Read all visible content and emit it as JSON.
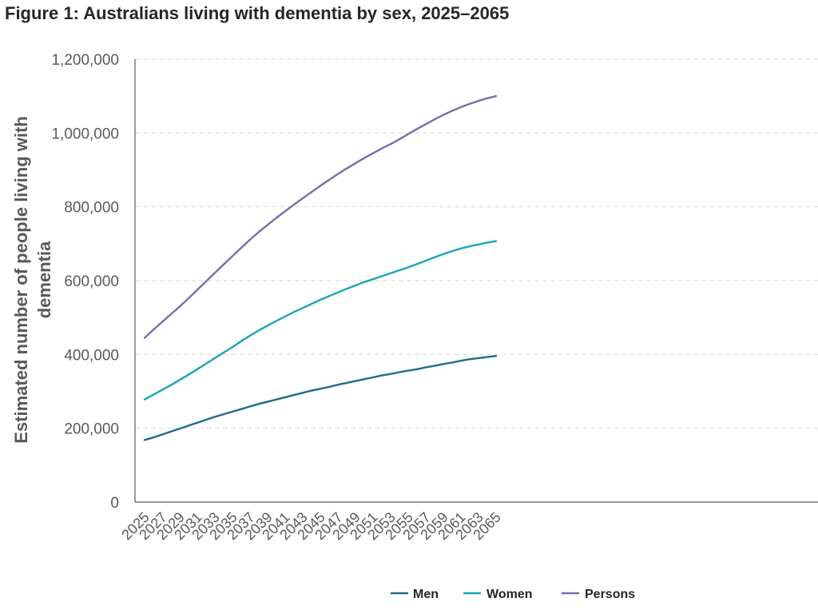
{
  "chart_data": {
    "type": "line",
    "title": "Figure 1: Australians living with dementia by sex, 2025–2065",
    "xlabel": "",
    "ylabel_lines": [
      "Estimated number of people living with",
      "dementia"
    ],
    "x": [
      2025,
      2026,
      2027,
      2028,
      2029,
      2030,
      2031,
      2032,
      2033,
      2034,
      2035,
      2036,
      2037,
      2038,
      2039,
      2040,
      2041,
      2042,
      2043,
      2044,
      2045,
      2046,
      2047,
      2048,
      2049,
      2050,
      2051,
      2052,
      2053,
      2054,
      2055,
      2056,
      2057,
      2058,
      2059,
      2060,
      2061,
      2062,
      2063,
      2064,
      2065
    ],
    "x_tick_labels": [
      "2025",
      "2027",
      "2029",
      "2031",
      "2033",
      "2035",
      "2037",
      "2039",
      "2041",
      "2043",
      "2045",
      "2047",
      "2049",
      "2051",
      "2053",
      "2055",
      "2057",
      "2059",
      "2061",
      "2063",
      "2065"
    ],
    "y_tick_labels": [
      "0",
      "200,000",
      "400,000",
      "600,000",
      "800,000",
      "1,000,000",
      "1,200,000"
    ],
    "ylim": [
      0,
      1200000
    ],
    "grid": "horizontal dashed",
    "legend_position": "bottom",
    "series": [
      {
        "name": "Men",
        "color": "#1f6b85",
        "values": [
          168000,
          175000,
          183000,
          191000,
          199000,
          207000,
          215000,
          223000,
          231000,
          238000,
          245000,
          252000,
          259000,
          266000,
          272000,
          278000,
          284000,
          290000,
          296000,
          302000,
          307000,
          312000,
          318000,
          323000,
          328000,
          333000,
          338000,
          343000,
          347000,
          352000,
          356000,
          360000,
          365000,
          369000,
          374000,
          378000,
          383000,
          387000,
          390000,
          393000,
          396000
        ]
      },
      {
        "name": "Women",
        "color": "#1aa6b7",
        "values": [
          278000,
          291000,
          304000,
          317000,
          331000,
          345000,
          360000,
          375000,
          390000,
          405000,
          420000,
          436000,
          451000,
          465000,
          478000,
          491000,
          503000,
          515000,
          526000,
          537000,
          548000,
          558000,
          568000,
          578000,
          587000,
          596000,
          604000,
          612000,
          620000,
          628000,
          636000,
          645000,
          654000,
          663000,
          672000,
          680000,
          687000,
          693000,
          698000,
          703000,
          707000
        ]
      },
      {
        "name": "Persons",
        "color": "#7b6cab",
        "values": [
          445000,
          467000,
          488000,
          509000,
          530000,
          552000,
          575000,
          598000,
          621000,
          644000,
          666000,
          689000,
          711000,
          732000,
          751000,
          770000,
          788000,
          806000,
          823000,
          840000,
          857000,
          873000,
          889000,
          904000,
          918000,
          932000,
          945000,
          958000,
          970000,
          983000,
          997000,
          1011000,
          1024000,
          1037000,
          1049000,
          1060000,
          1070000,
          1079000,
          1087000,
          1094000,
          1100000
        ]
      }
    ]
  }
}
